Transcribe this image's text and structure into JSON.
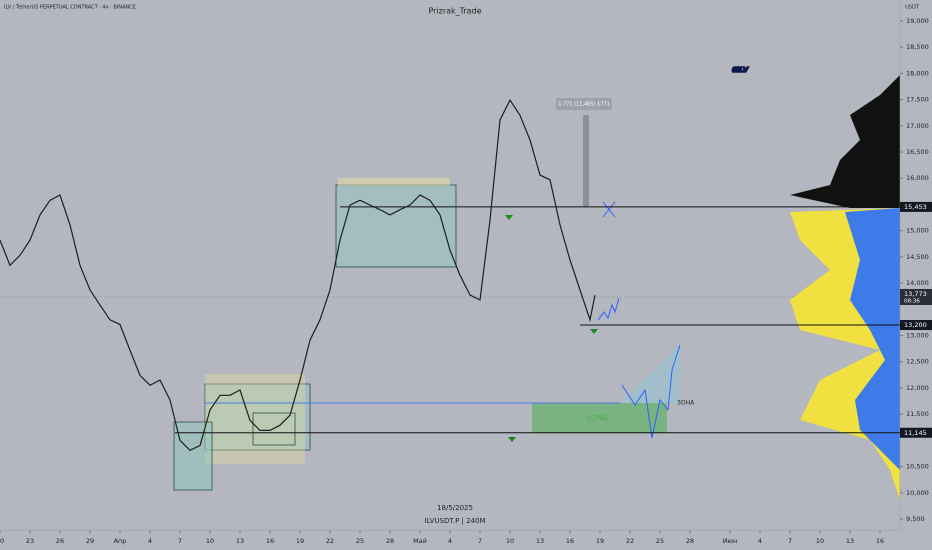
{
  "chart_data": {
    "type": "line",
    "title": "Prizrak_Trade",
    "symbol": "ILV / TetherUS PERPETUAL CONTRACT · 4ч · BINANCE",
    "currency": "USDT",
    "watermark": "#ILV",
    "date": "18/5/2025",
    "footer": "ILVUSDT.P | 240M",
    "color": "#1e1e1e",
    "x": [
      0,
      1,
      2,
      3,
      4,
      5,
      6,
      7,
      8,
      9,
      10,
      11,
      12,
      13,
      14,
      15,
      16,
      17,
      18,
      19,
      20,
      21,
      22,
      23,
      24,
      25,
      26,
      27,
      28,
      29,
      30,
      31,
      32,
      33,
      34,
      35,
      36,
      37,
      38,
      39,
      40,
      41,
      42,
      43,
      44,
      45,
      46,
      47,
      48,
      49,
      50,
      51,
      52,
      53,
      54,
      55,
      56,
      57,
      58,
      59,
      59.5
    ],
    "values": [
      14820,
      14340,
      14530,
      14820,
      15300,
      15580,
      15680,
      15110,
      14340,
      13870,
      13580,
      13300,
      13210,
      12720,
      12240,
      12050,
      12150,
      11770,
      11000,
      10810,
      10900,
      11580,
      11860,
      11860,
      11960,
      11380,
      11190,
      11190,
      11290,
      11480,
      12150,
      12910,
      13300,
      13870,
      14820,
      15490,
      15580,
      15490,
      15400,
      15300,
      15400,
      15490,
      15680,
      15580,
      15300,
      14630,
      14150,
      13770,
      13680,
      15200,
      17110,
      17490,
      17200,
      16730,
      16060,
      15970,
      15110,
      14440,
      13870,
      13300,
      13770
    ],
    "xlim": [
      0,
      90
    ],
    "xticks": [
      {
        "value": 0,
        "label": "20"
      },
      {
        "value": 3,
        "label": "23"
      },
      {
        "value": 6,
        "label": "26"
      },
      {
        "value": 9,
        "label": "29"
      },
      {
        "value": 12,
        "label": "Апр"
      },
      {
        "value": 15,
        "label": "4"
      },
      {
        "value": 18,
        "label": "7"
      },
      {
        "value": 21,
        "label": "10"
      },
      {
        "value": 24,
        "label": "13"
      },
      {
        "value": 27,
        "label": "16"
      },
      {
        "value": 30,
        "label": "19"
      },
      {
        "value": 33,
        "label": "22"
      },
      {
        "value": 36,
        "label": "25"
      },
      {
        "value": 39,
        "label": "28"
      },
      {
        "value": 42,
        "label": "Май"
      },
      {
        "value": 45,
        "label": "4"
      },
      {
        "value": 48,
        "label": "7"
      },
      {
        "value": 51,
        "label": "10"
      },
      {
        "value": 54,
        "label": "13"
      },
      {
        "value": 57,
        "label": "16"
      },
      {
        "value": 60,
        "label": "19"
      },
      {
        "value": 63,
        "label": "22"
      },
      {
        "value": 66,
        "label": "25"
      },
      {
        "value": 69,
        "label": "28"
      },
      {
        "value": 73,
        "label": "Июн"
      },
      {
        "value": 76,
        "label": "4"
      },
      {
        "value": 79,
        "label": "7"
      },
      {
        "value": 82,
        "label": "10"
      },
      {
        "value": 85,
        "label": "13"
      },
      {
        "value": 88,
        "label": "16"
      }
    ],
    "ylim": [
      9290,
      19400
    ],
    "yticks": [
      {
        "value": 19000,
        "label": "19,000"
      },
      {
        "value": 18500,
        "label": "18,500"
      },
      {
        "value": 18000,
        "label": "18,000"
      },
      {
        "value": 17500,
        "label": "17,500"
      },
      {
        "value": 17000,
        "label": "17,000"
      },
      {
        "value": 16500,
        "label": "16,500"
      },
      {
        "value": 16000,
        "label": "16,000"
      },
      {
        "value": 15000,
        "label": "15,000"
      },
      {
        "value": 14500,
        "label": "14,500"
      },
      {
        "value": 14000,
        "label": "14,000"
      },
      {
        "value": 13000,
        "label": "13,000"
      },
      {
        "value": 12500,
        "label": "12,500"
      },
      {
        "value": 12000,
        "label": "12,000"
      },
      {
        "value": 11500,
        "label": "11,500"
      },
      {
        "value": 10500,
        "label": "10,500"
      },
      {
        "value": 10000,
        "label": "10,000"
      },
      {
        "value": 9500,
        "label": "9,500"
      }
    ],
    "levels": [
      {
        "value": 15453,
        "label": "15,453",
        "from": 34
      },
      {
        "value": 13200,
        "label": "13,200",
        "from": 58
      },
      {
        "value": 11145,
        "label": "11,145",
        "from": 17.5
      }
    ],
    "current_price": {
      "value": 13773,
      "label": "13,773",
      "timer": "08:36"
    },
    "annotations": {
      "measure": "1,771 (11,465) 1771",
      "long": "LONG",
      "zone": "ЗОНА"
    }
  }
}
